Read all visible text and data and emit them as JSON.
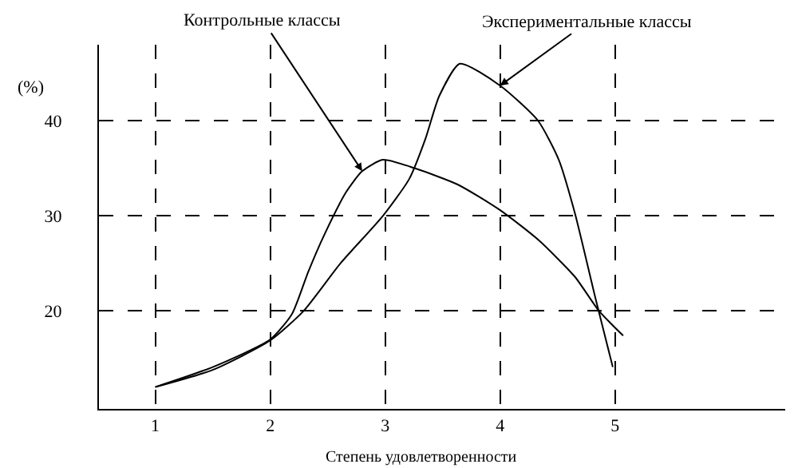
{
  "chart_data": {
    "type": "line",
    "xlabel": "Степень удовлетворенности",
    "ylabel": "(%)",
    "xlim": [
      0.51,
      6.48
    ],
    "ylim": [
      9.7,
      48
    ],
    "xticks": [
      1,
      2,
      3,
      4,
      5
    ],
    "yticks": [
      20,
      30,
      40
    ],
    "grid": true,
    "marker": "none",
    "line_style": "solid",
    "annotations": [
      {
        "text": "Контрольные классы",
        "x": 2.8,
        "y": 34.7
      },
      {
        "text": "Экспериментальные классы",
        "x": 4,
        "y": 43.7
      }
    ],
    "series": [
      {
        "color": "#000000",
        "x": [
          1,
          1.5,
          2,
          2.19,
          2.33,
          2.47,
          2.66,
          2.8,
          2.98,
          3.26,
          3.63,
          4,
          4.33,
          4.65,
          4.86,
          5.07
        ],
        "values": [
          12,
          14.1,
          17,
          19.7,
          24.1,
          28,
          32.5,
          34.7,
          35.9,
          35,
          33.3,
          30.6,
          27.5,
          23.6,
          20,
          17.4
        ]
      },
      {
        "color": "#000000",
        "x": [
          1,
          1.5,
          2,
          2.29,
          2.61,
          2.98,
          3.21,
          3.35,
          3.47,
          3.65,
          4,
          4.33,
          4.51,
          4.65,
          4.83,
          4.98
        ],
        "values": [
          12,
          13.8,
          16.9,
          20,
          25,
          30,
          33.9,
          38.1,
          42.6,
          46,
          43.7,
          40,
          35.9,
          30.3,
          21.3,
          14.1
        ]
      }
    ]
  }
}
